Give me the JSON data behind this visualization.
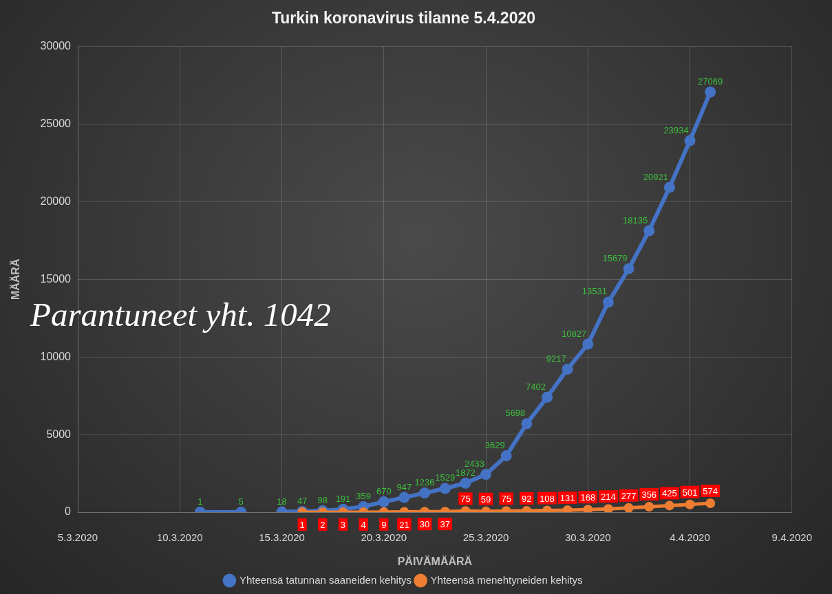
{
  "chart_data": {
    "type": "line",
    "title": "Turkin koronavirus tilanne 5.4.2020",
    "xlabel": "PÄIVÄMÄÄRÄ",
    "ylabel": "MÄÄRÄ",
    "xlim": [
      "2020-03-05",
      "2020-04-09"
    ],
    "xticks": [
      {
        "value": "2020-03-05",
        "label": "5.3.2020"
      },
      {
        "value": "2020-03-10",
        "label": "10.3.2020"
      },
      {
        "value": "2020-03-15",
        "label": "15.3.2020"
      },
      {
        "value": "2020-03-20",
        "label": "20.3.2020"
      },
      {
        "value": "2020-03-25",
        "label": "25.3.2020"
      },
      {
        "value": "2020-03-30",
        "label": "30.3.2020"
      },
      {
        "value": "2020-04-04",
        "label": "4.4.2020"
      },
      {
        "value": "2020-04-09",
        "label": "9.4.2020"
      }
    ],
    "ylim": [
      0,
      30000
    ],
    "yticks": [
      0,
      5000,
      10000,
      15000,
      20000,
      25000,
      30000
    ],
    "grid": true,
    "legend": "bottom",
    "marker": "circle",
    "line_style": "solid",
    "data_labels": true,
    "annotations": [
      "Parantuneet yht. 1042"
    ],
    "series": [
      {
        "name": "Yhteensä tatunnan saaneiden kehitys",
        "color": "#4472c4",
        "x": [
          "2020-03-11",
          "2020-03-13",
          "2020-03-14",
          "2020-03-15",
          "2020-03-16",
          "2020-03-17",
          "2020-03-18",
          "2020-03-19",
          "2020-03-20",
          "2020-03-21",
          "2020-03-22",
          "2020-03-23",
          "2020-03-24",
          "2020-03-25",
          "2020-03-26",
          "2020-03-27",
          "2020-03-28",
          "2020-03-29",
          "2020-03-30",
          "2020-03-31",
          "2020-04-01",
          "2020-04-02",
          "2020-04-03",
          "2020-04-04",
          "2020-04-05"
        ],
        "values": [
          1,
          5,
          null,
          18,
          47,
          98,
          191,
          359,
          670,
          947,
          1236,
          1529,
          1872,
          2433,
          3629,
          5698,
          7402,
          9217,
          10827,
          13531,
          15679,
          18135,
          20921,
          23934,
          27069
        ]
      },
      {
        "name": "Yhteensä menehtyneiden kehitys",
        "color": "#ed7d31",
        "x": [
          "2020-03-16",
          "2020-03-17",
          "2020-03-18",
          "2020-03-19",
          "2020-03-20",
          "2020-03-21",
          "2020-03-22",
          "2020-03-23",
          "2020-03-24",
          "2020-03-25",
          "2020-03-26",
          "2020-03-27",
          "2020-03-28",
          "2020-03-29",
          "2020-03-30",
          "2020-03-31",
          "2020-04-01",
          "2020-04-02",
          "2020-04-03",
          "2020-04-04",
          "2020-04-05"
        ],
        "values": [
          1,
          2,
          3,
          4,
          9,
          21,
          30,
          37,
          75,
          59,
          75,
          92,
          108,
          131,
          168,
          214,
          277,
          356,
          425,
          501,
          574
        ]
      }
    ]
  }
}
